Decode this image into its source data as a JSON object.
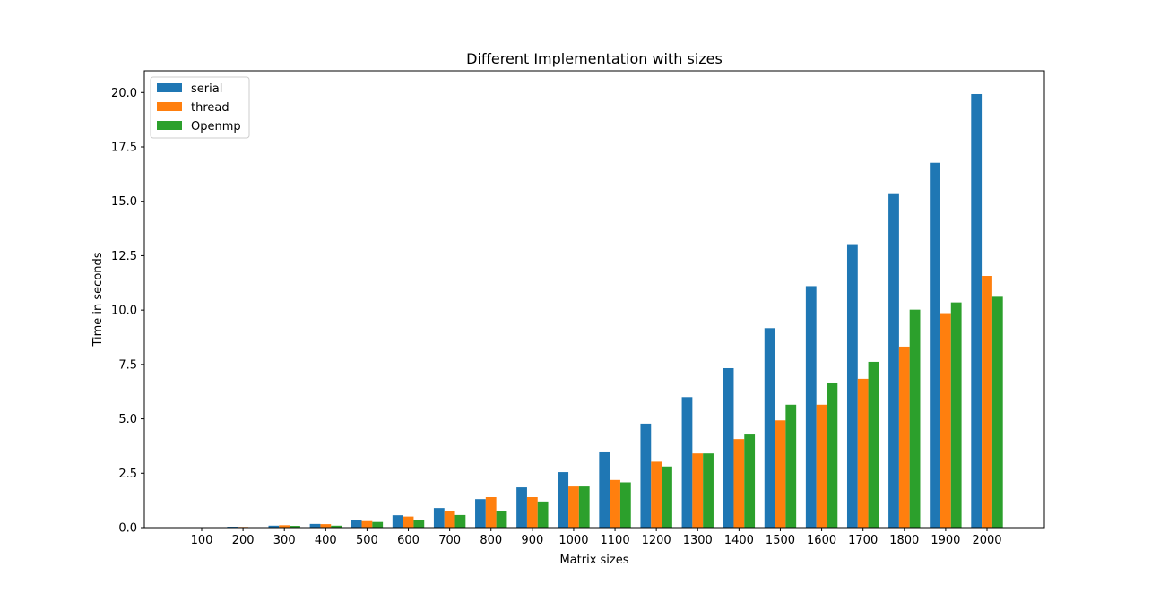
{
  "chart_data": {
    "type": "bar",
    "title": "Different Implementation with sizes",
    "xlabel": "Matrix sizes",
    "ylabel": "Time in seconds",
    "ylim": [
      0,
      21
    ],
    "yticks": [
      0.0,
      2.5,
      5.0,
      7.5,
      10.0,
      12.5,
      15.0,
      17.5,
      20.0
    ],
    "ytick_labels": [
      "0.0",
      "2.5",
      "5.0",
      "7.5",
      "10.0",
      "12.5",
      "15.0",
      "17.5",
      "20.0"
    ],
    "grid": false,
    "legend_position": "top-left",
    "categories": [
      "100",
      "200",
      "300",
      "400",
      "500",
      "600",
      "700",
      "800",
      "900",
      "1000",
      "1100",
      "1200",
      "1300",
      "1400",
      "1500",
      "1600",
      "1700",
      "1800",
      "1900",
      "2000"
    ],
    "series": [
      {
        "name": "serial",
        "color": "#1f77b4",
        "values": [
          0.01,
          0.04,
          0.09,
          0.17,
          0.33,
          0.57,
          0.9,
          1.31,
          1.85,
          2.55,
          3.46,
          4.78,
          6.0,
          7.33,
          9.17,
          11.1,
          13.03,
          15.33,
          16.77,
          19.93
        ]
      },
      {
        "name": "thread",
        "color": "#ff7f0e",
        "values": [
          0.01,
          0.03,
          0.11,
          0.16,
          0.3,
          0.51,
          0.78,
          1.4,
          1.4,
          1.89,
          2.19,
          3.03,
          3.41,
          4.07,
          4.93,
          5.65,
          6.84,
          8.32,
          9.86,
          11.57
        ]
      },
      {
        "name": "Openmp",
        "color": "#2ca02c",
        "values": [
          0.0,
          0.02,
          0.08,
          0.09,
          0.26,
          0.33,
          0.58,
          0.78,
          1.2,
          1.89,
          2.08,
          2.81,
          3.41,
          4.28,
          5.65,
          6.63,
          7.62,
          10.02,
          10.35,
          10.65
        ]
      }
    ]
  }
}
